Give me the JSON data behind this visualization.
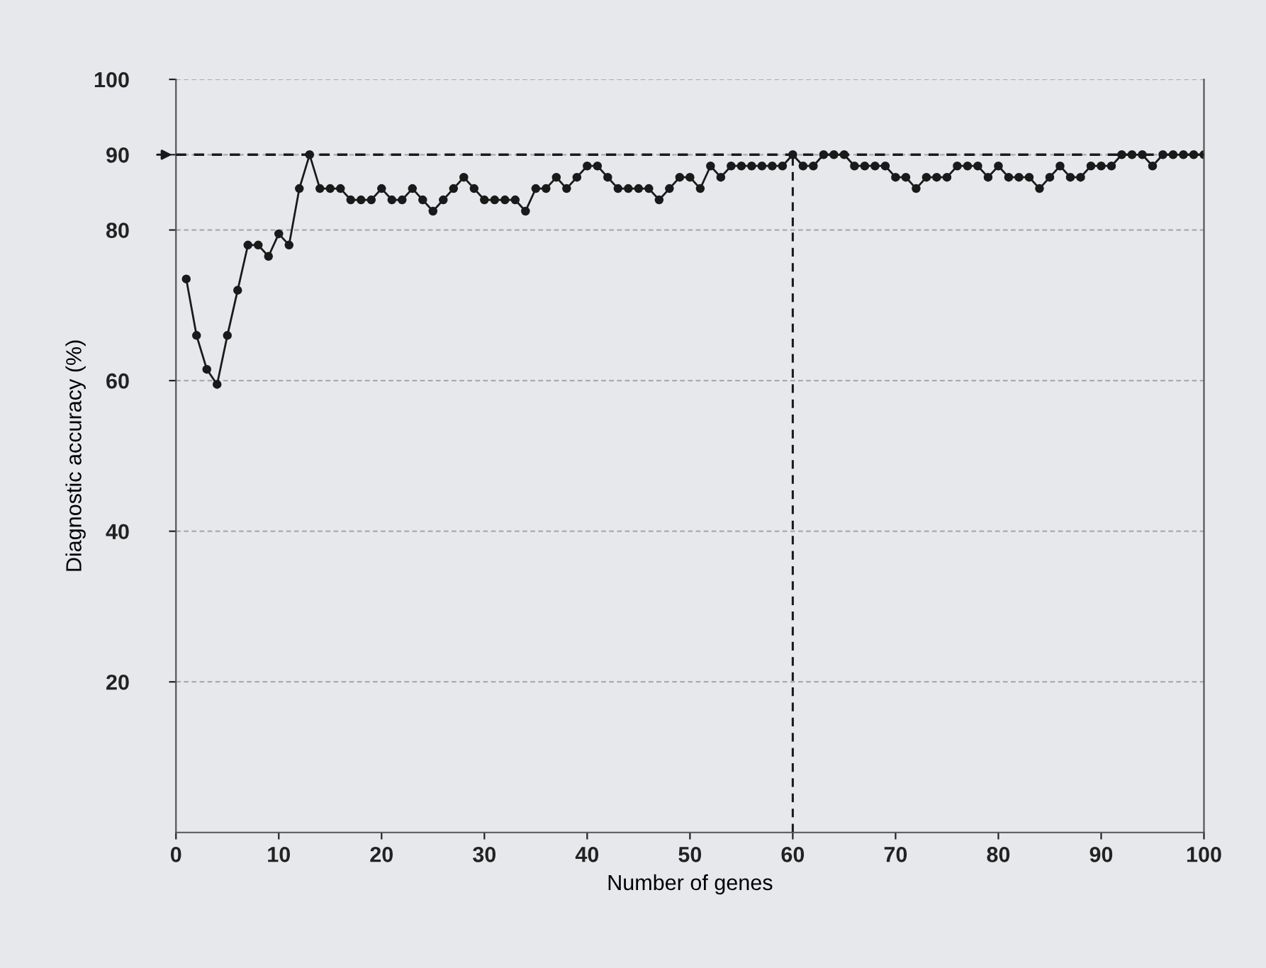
{
  "chart_data": {
    "type": "line",
    "xlabel": "Number of genes",
    "ylabel": "Diagnostic accuracy (%)",
    "x": [
      1,
      2,
      3,
      4,
      5,
      6,
      7,
      8,
      9,
      10,
      11,
      12,
      13,
      14,
      15,
      16,
      17,
      18,
      19,
      20,
      21,
      22,
      23,
      24,
      25,
      26,
      27,
      28,
      29,
      30,
      31,
      32,
      33,
      34,
      35,
      36,
      37,
      38,
      39,
      40,
      41,
      42,
      43,
      44,
      45,
      46,
      47,
      48,
      49,
      50,
      51,
      52,
      53,
      54,
      55,
      56,
      57,
      58,
      59,
      60,
      61,
      62,
      63,
      64,
      65,
      66,
      67,
      68,
      69,
      70,
      71,
      72,
      73,
      74,
      75,
      76,
      77,
      78,
      79,
      80,
      81,
      82,
      83,
      84,
      85,
      86,
      87,
      88,
      89,
      90,
      91,
      92,
      93,
      94,
      95,
      96,
      97,
      98,
      99,
      100
    ],
    "series": [
      {
        "color": "#1a1a1a",
        "values": [
          73.5,
          66,
          61.5,
          59.5,
          66,
          72,
          78,
          78,
          76.5,
          79.5,
          78,
          85.5,
          90,
          85.5,
          85.5,
          85.5,
          84,
          84,
          84,
          85.5,
          84,
          84,
          85.5,
          84,
          82.5,
          84,
          85.5,
          87,
          85.5,
          84,
          84,
          84,
          84,
          82.5,
          85.5,
          85.5,
          87,
          85.5,
          87,
          88.5,
          88.5,
          87,
          85.5,
          85.5,
          85.5,
          85.5,
          84,
          85.5,
          87,
          87,
          85.5,
          88.5,
          87,
          88.5,
          88.5,
          88.5,
          88.5,
          88.5,
          88.5,
          90,
          88.5,
          88.5,
          90,
          90,
          90,
          88.5,
          88.5,
          88.5,
          88.5,
          87,
          87,
          85.5,
          87,
          87,
          87,
          88.5,
          88.5,
          88.5,
          87,
          88.5,
          87,
          87,
          87,
          85.5,
          87,
          88.5,
          87,
          87,
          88.5,
          88.5,
          88.5,
          90,
          90,
          90,
          88.5,
          90,
          90,
          90,
          90,
          90
        ]
      }
    ],
    "marker": "circle",
    "line_style": "solid",
    "xlim": [
      0,
      100
    ],
    "xticks": [
      0,
      10,
      20,
      30,
      40,
      50,
      60,
      70,
      80,
      90,
      100
    ],
    "ylim": [
      0,
      100
    ],
    "yticks": [
      20,
      40,
      60,
      80,
      90,
      100
    ],
    "grid": "y",
    "ref_lines": [
      {
        "axis": "y",
        "value": 90,
        "color": "#1a1a1a",
        "line_style": "dashed"
      },
      {
        "axis": "x",
        "value": 60,
        "color": "#1a1a1a",
        "line_style": "dashed"
      }
    ]
  }
}
